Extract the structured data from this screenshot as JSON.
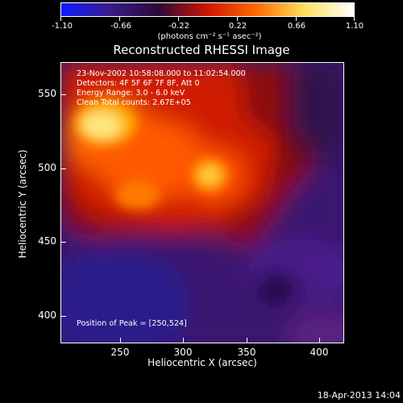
{
  "colorbar": {
    "ticks": [
      "-1.10",
      "-0.66",
      "-0.22",
      "0.22",
      "0.66",
      "1.10"
    ],
    "unit_label": "(photons cm⁻² s⁻¹ asec⁻²)",
    "colors": [
      "#0b1cff",
      "#3a1b8a",
      "#2a0a3a",
      "#cf1500",
      "#ff6a00",
      "#ffe060",
      "#ffffff"
    ]
  },
  "title": "Reconstructed RHESSI Image",
  "annotations": {
    "time_range": "23-Nov-2002 10:58:08.000 to 11:02:54.000",
    "detectors": "Detectors: 4F 5F 6F 7F 8F, Att 0",
    "energy": "Energy Range: 3.0 - 6.0 keV",
    "clean": "Clean     Total counts: 2.67E+05",
    "peak": "Position of Peak = [250,524]"
  },
  "axes": {
    "xlabel": "Heliocentric X (arcsec)",
    "ylabel": "Heliocentric Y (arcsec)",
    "xticks": [
      "250",
      "300",
      "350",
      "400"
    ],
    "yticks": [
      "550",
      "500",
      "450",
      "400"
    ]
  },
  "footer": {
    "timestamp": "18-Apr-2013 14:04"
  }
}
